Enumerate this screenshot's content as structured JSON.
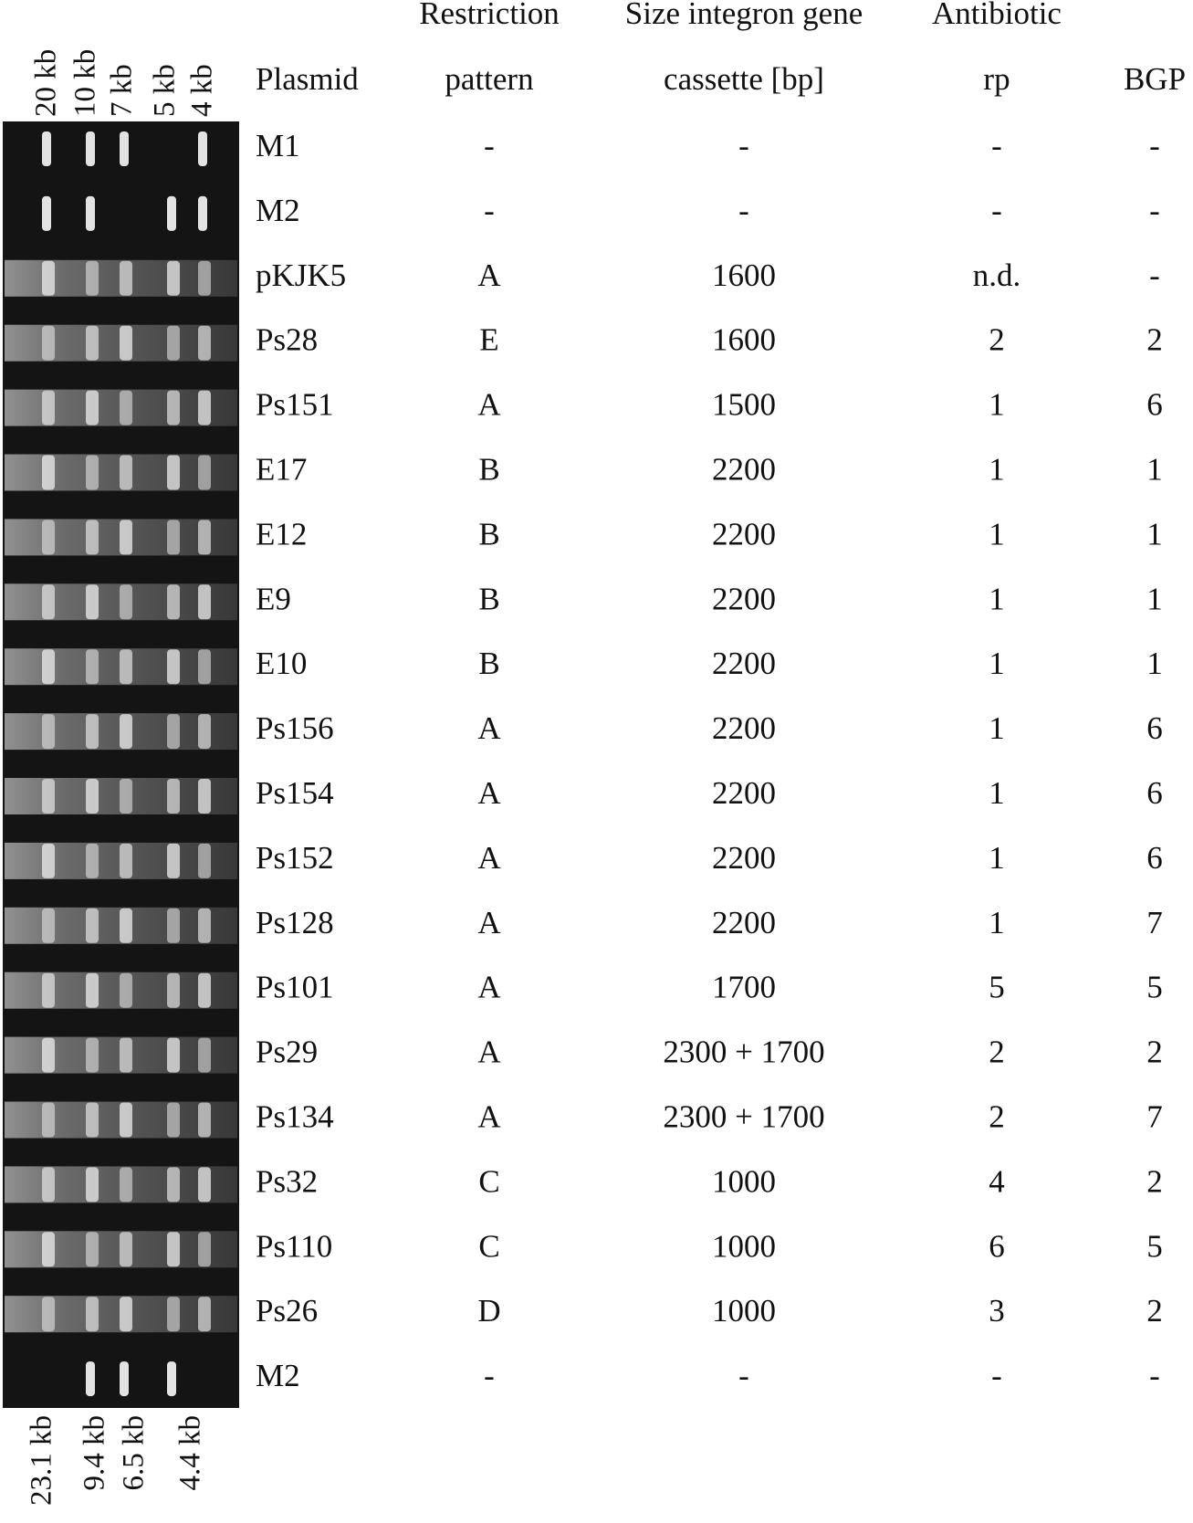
{
  "gel": {
    "top_labels": [
      "20 kb",
      "10 kb",
      "7 kb",
      "5 kb",
      "4 kb"
    ],
    "bottom_labels": [
      "23.1 kb",
      "9.4 kb",
      "6.5 kb",
      "4.4 kb"
    ]
  },
  "table": {
    "columns": [
      {
        "lines": [
          "Plasmid"
        ]
      },
      {
        "lines": [
          "Restriction",
          "pattern"
        ]
      },
      {
        "lines": [
          "Size integron gene",
          "cassette [bp]"
        ]
      },
      {
        "lines": [
          "Antibiotic",
          "rp"
        ]
      },
      {
        "lines": [
          "BGP"
        ]
      }
    ],
    "rows": [
      [
        "M1",
        "-",
        "-",
        "-",
        "-"
      ],
      [
        "M2",
        "-",
        "-",
        "-",
        "-"
      ],
      [
        "pKJK5",
        "A",
        "1600",
        "n.d.",
        "-"
      ],
      [
        "Ps28",
        "E",
        "1600",
        "2",
        "2"
      ],
      [
        "Ps151",
        "A",
        "1500",
        "1",
        "6"
      ],
      [
        "E17",
        "B",
        "2200",
        "1",
        "1"
      ],
      [
        "E12",
        "B",
        "2200",
        "1",
        "1"
      ],
      [
        "E9",
        "B",
        "2200",
        "1",
        "1"
      ],
      [
        "E10",
        "B",
        "2200",
        "1",
        "1"
      ],
      [
        "Ps156",
        "A",
        "2200",
        "1",
        "6"
      ],
      [
        "Ps154",
        "A",
        "2200",
        "1",
        "6"
      ],
      [
        "Ps152",
        "A",
        "2200",
        "1",
        "6"
      ],
      [
        "Ps128",
        "A",
        "2200",
        "1",
        "7"
      ],
      [
        "Ps101",
        "A",
        "1700",
        "5",
        "5"
      ],
      [
        "Ps29",
        "A",
        "2300 + 1700",
        "2",
        "2"
      ],
      [
        "Ps134",
        "A",
        "2300 + 1700",
        "2",
        "7"
      ],
      [
        "Ps32",
        "C",
        "1000",
        "4",
        "2"
      ],
      [
        "Ps110",
        "C",
        "1000",
        "6",
        "5"
      ],
      [
        "Ps26",
        "D",
        "1000",
        "3",
        "2"
      ],
      [
        "M2",
        "-",
        "-",
        "-",
        "-"
      ]
    ]
  }
}
